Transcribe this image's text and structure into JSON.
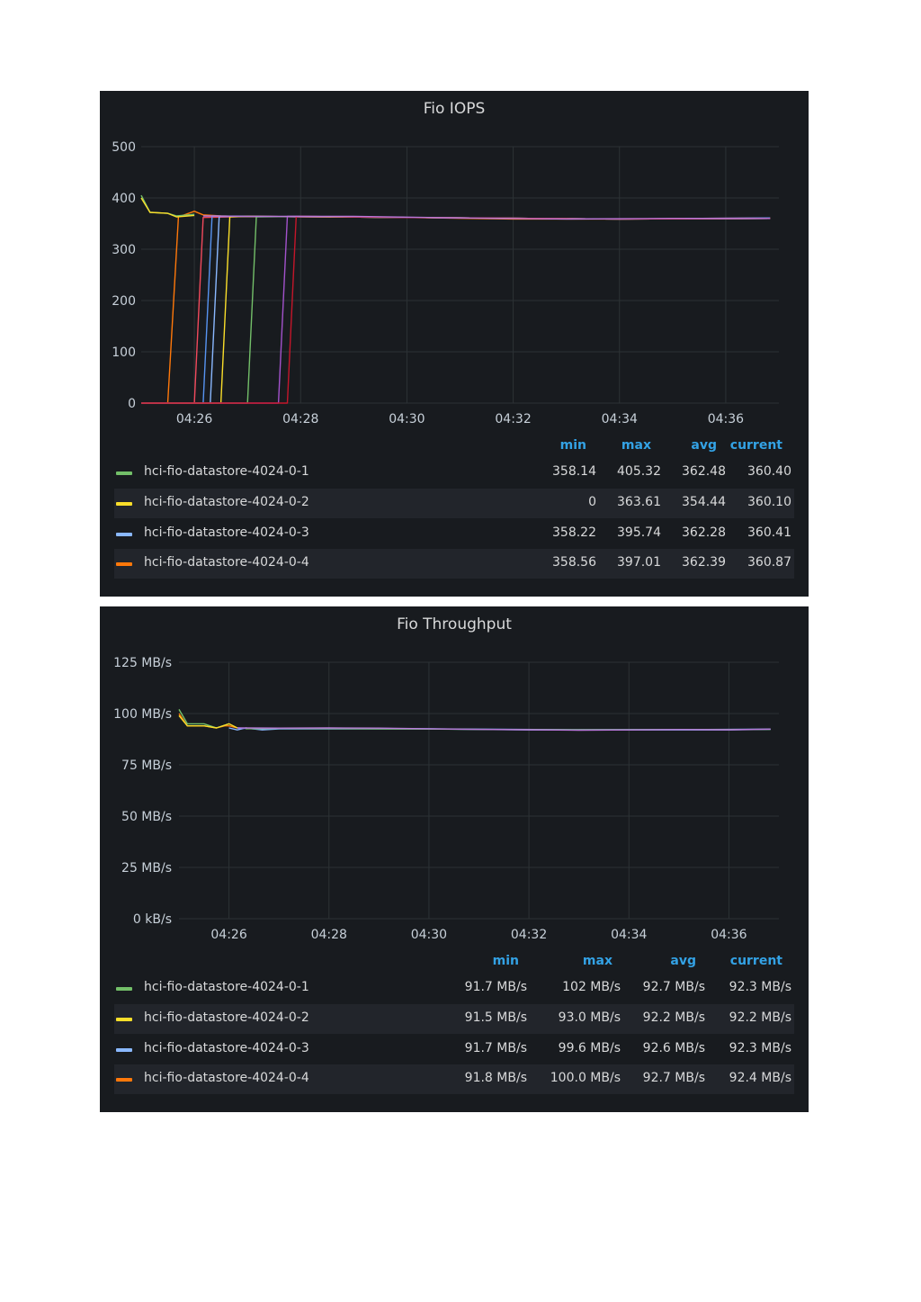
{
  "chart_data": [
    {
      "type": "line",
      "title": "Fio IOPS",
      "ylim": [
        0,
        500
      ],
      "yticks": [
        "0",
        "100",
        "200",
        "300",
        "400",
        "500"
      ],
      "xticks": [
        "04:26",
        "04:28",
        "04:30",
        "04:32",
        "04:34",
        "04:36"
      ],
      "grid": true,
      "legend_placement": "bottom",
      "legend_columns": [
        "min",
        "max",
        "avg",
        "current"
      ],
      "series": [
        {
          "name": "hci-fio-datastore-4024-0-1",
          "color": "#73bf69",
          "stats": [
            "358.14",
            "405.32",
            "362.48",
            "360.40"
          ]
        },
        {
          "name": "hci-fio-datastore-4024-0-2",
          "color": "#fade2a",
          "stats": [
            "0",
            "363.61",
            "354.44",
            "360.10"
          ]
        },
        {
          "name": "hci-fio-datastore-4024-0-3",
          "color": "#8ab8ff",
          "stats": [
            "358.22",
            "395.74",
            "362.28",
            "360.41"
          ]
        },
        {
          "name": "hci-fio-datastore-4024-0-4",
          "color": "#ff780a",
          "stats": [
            "358.56",
            "397.01",
            "362.39",
            "360.87"
          ]
        }
      ],
      "lines": [
        {
          "color": "#ff780a",
          "x": [
            "04:25",
            "04:25:30",
            "04:25:42",
            "04:26",
            "04:26:10",
            "04:26:30",
            "04:27",
            "04:30",
            "04:32",
            "04:34",
            "04:36",
            "04:36:50"
          ],
          "y": [
            0,
            0,
            363,
            374,
            367,
            365,
            364,
            362,
            359,
            359,
            360,
            361
          ]
        },
        {
          "color": "#f2495c",
          "x": [
            "04:25",
            "04:26",
            "04:26:10",
            "04:27",
            "04:30",
            "04:34",
            "04:36:50"
          ],
          "y": [
            0,
            0,
            362,
            364,
            362,
            359,
            361
          ]
        },
        {
          "color": "#5794f2",
          "x": [
            "04:25",
            "04:26:10",
            "04:26:20",
            "04:27",
            "04:30",
            "04:34",
            "04:36:50"
          ],
          "y": [
            0,
            0,
            365,
            364,
            362,
            359,
            361
          ]
        },
        {
          "color": "#8ab8ff",
          "x": [
            "04:25",
            "04:26:18",
            "04:26:28",
            "04:27",
            "04:30",
            "04:34",
            "04:36:50"
          ],
          "y": [
            0,
            0,
            364,
            364,
            362,
            359,
            360
          ]
        },
        {
          "color": "#fade2a",
          "x": [
            "04:25",
            "04:26:30",
            "04:26:40",
            "04:27",
            "04:30",
            "04:34",
            "04:36:50"
          ],
          "y": [
            0,
            0,
            363,
            364,
            362,
            359,
            360
          ]
        },
        {
          "color": "#73bf69",
          "x": [
            "04:25",
            "04:27",
            "04:27:10",
            "04:28",
            "04:30",
            "04:34",
            "04:36:50"
          ],
          "y": [
            0,
            0,
            363,
            364,
            362,
            359,
            360
          ]
        },
        {
          "color": "#a352cc",
          "x": [
            "04:25",
            "04:27:35",
            "04:27:45",
            "04:28",
            "04:30",
            "04:34",
            "04:36:50"
          ],
          "y": [
            0,
            0,
            364,
            364,
            362,
            359,
            360
          ]
        },
        {
          "color": "#c4162a",
          "x": [
            "04:25",
            "04:27:45",
            "04:27:55",
            "04:28",
            "04:30",
            "04:34",
            "04:36:50"
          ],
          "y": [
            0,
            0,
            363,
            364,
            362,
            359,
            360
          ]
        },
        {
          "color": "#b877d9",
          "x": [
            "04:26:10",
            "04:27",
            "04:29",
            "04:31",
            "04:33",
            "04:35",
            "04:36:50"
          ],
          "y": [
            365,
            364,
            364,
            361,
            359,
            360,
            360
          ]
        },
        {
          "color": "#73bf69",
          "x": [
            "04:25",
            "04:25:10",
            "04:25:30",
            "04:25:40",
            "04:26"
          ],
          "y": [
            405,
            372,
            370,
            365,
            368
          ]
        },
        {
          "color": "#fade2a",
          "x": [
            "04:25",
            "04:25:10",
            "04:25:30",
            "04:25:40",
            "04:26"
          ],
          "y": [
            400,
            372,
            370,
            363,
            366
          ]
        }
      ]
    },
    {
      "type": "line",
      "title": "Fio Throughput",
      "ylim": [
        0,
        125
      ],
      "yticks": [
        "0 kB/s",
        "25 MB/s",
        "50 MB/s",
        "75 MB/s",
        "100 MB/s",
        "125 MB/s"
      ],
      "xticks": [
        "04:26",
        "04:28",
        "04:30",
        "04:32",
        "04:34",
        "04:36"
      ],
      "grid": true,
      "legend_placement": "bottom",
      "legend_columns": [
        "min",
        "max",
        "avg",
        "current"
      ],
      "series": [
        {
          "name": "hci-fio-datastore-4024-0-1",
          "color": "#73bf69",
          "stats": [
            "91.7 MB/s",
            "102 MB/s",
            "92.7 MB/s",
            "92.3 MB/s"
          ]
        },
        {
          "name": "hci-fio-datastore-4024-0-2",
          "color": "#fade2a",
          "stats": [
            "91.5 MB/s",
            "93.0 MB/s",
            "92.2 MB/s",
            "92.2 MB/s"
          ]
        },
        {
          "name": "hci-fio-datastore-4024-0-3",
          "color": "#8ab8ff",
          "stats": [
            "91.7 MB/s",
            "99.6 MB/s",
            "92.6 MB/s",
            "92.3 MB/s"
          ]
        },
        {
          "name": "hci-fio-datastore-4024-0-4",
          "color": "#ff780a",
          "stats": [
            "91.8 MB/s",
            "100.0 MB/s",
            "92.7 MB/s",
            "92.4 MB/s"
          ]
        }
      ],
      "lines": [
        {
          "color": "#ff780a",
          "x": [
            "04:25",
            "04:25:10",
            "04:25:30",
            "04:25:45",
            "04:25:55",
            "04:26",
            "04:26:10"
          ],
          "y": [
            100,
            94,
            94,
            93,
            94,
            94,
            93
          ]
        },
        {
          "color": "#8ab8ff",
          "x": [
            "04:26",
            "04:26:10",
            "04:26:20",
            "04:26:40",
            "04:27",
            "04:30",
            "04:32",
            "04:34",
            "04:36",
            "04:36:50"
          ],
          "y": [
            93,
            92,
            93,
            92,
            92.5,
            92.5,
            92,
            92,
            92,
            92.3
          ]
        },
        {
          "color": "#5794f2",
          "x": [
            "04:26:10",
            "04:26:30",
            "04:27",
            "04:29",
            "04:31",
            "04:33",
            "04:35",
            "04:36:50"
          ],
          "y": [
            93,
            92.5,
            92.8,
            92.7,
            92.4,
            92.1,
            92.2,
            92.4
          ]
        },
        {
          "color": "#73bf69",
          "x": [
            "04:26:20",
            "04:27",
            "04:29",
            "04:31",
            "04:33",
            "04:35",
            "04:36:50"
          ],
          "y": [
            92.6,
            92.8,
            92.6,
            92.3,
            92.1,
            92.2,
            92.3
          ]
        },
        {
          "color": "#b877d9",
          "x": [
            "04:26:10",
            "04:27",
            "04:28",
            "04:29",
            "04:30",
            "04:31",
            "04:32",
            "04:33",
            "04:34",
            "04:35",
            "04:36",
            "04:36:50"
          ],
          "y": [
            93,
            92.9,
            93,
            92.9,
            92.6,
            92.3,
            92.1,
            91.9,
            92,
            92.2,
            92.1,
            92.4
          ]
        },
        {
          "color": "#73bf69",
          "x": [
            "04:25",
            "04:25:10",
            "04:25:30",
            "04:25:45",
            "04:26"
          ],
          "y": [
            102,
            95,
            95,
            93,
            95
          ]
        },
        {
          "color": "#fade2a",
          "x": [
            "04:25",
            "04:25:10",
            "04:25:30",
            "04:25:45",
            "04:26",
            "04:26:10"
          ],
          "y": [
            99,
            94,
            94,
            93,
            95,
            93
          ]
        }
      ]
    }
  ]
}
